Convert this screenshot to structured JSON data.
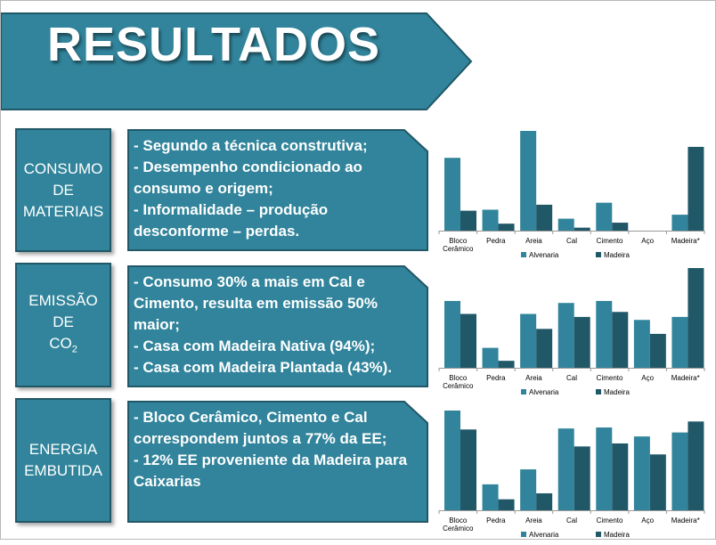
{
  "title": "RESULTADOS",
  "colors": {
    "primary": "#31849b",
    "dark": "#215868",
    "alvenaria": "#31849b",
    "madeira": "#215868"
  },
  "sections": [
    {
      "label_lines": [
        "CONSUMO",
        "DE",
        "MATERIAIS"
      ],
      "text_lines": [
        "- Segundo a técnica construtiva;",
        "- Desempenho condicionado ao",
        "consumo e origem;",
        "- Informalidade – produção",
        "desconforme – perdas."
      ]
    },
    {
      "label_lines": [
        "EMISSÃO",
        "DE",
        "CO"
      ],
      "label_subscript": "2",
      "text_lines": [
        "- Consumo 30% a mais em Cal e",
        "Cimento, resulta em emissão  50%",
        "maior;",
        "- Casa com Madeira Nativa (94%);",
        "- Casa com Madeira Plantada (43%)."
      ]
    },
    {
      "label_lines": [
        "ENERGIA",
        "EMBUTIDA"
      ],
      "text_lines": [
        "- Bloco Cerâmico, Cimento e Cal",
        "correspondem juntos a 77% da EE;",
        "- 12% EE proveniente da Madeira para",
        "Caixarias"
      ]
    }
  ],
  "chart_data": [
    {
      "type": "bar",
      "categories": [
        "Bloco Cerâmico",
        "Pedra",
        "Areia",
        "Cal",
        "Cimento",
        "Aço",
        "Madeira*"
      ],
      "series": [
        {
          "name": "Alvenaria",
          "values": [
            73,
            21,
            100,
            12,
            28,
            0,
            16
          ]
        },
        {
          "name": "Madeira",
          "values": [
            20,
            7,
            26,
            3,
            8,
            0,
            84
          ]
        }
      ],
      "legend": "bottom"
    },
    {
      "type": "bar",
      "categories": [
        "Bloco Cerâmico",
        "Pedra",
        "Areia",
        "Cal",
        "Cimento",
        "Aço",
        "Madeira*"
      ],
      "series": [
        {
          "name": "Alvenaria",
          "values": [
            67,
            20,
            54,
            65,
            67,
            48,
            51
          ]
        },
        {
          "name": "Madeira",
          "values": [
            54,
            7,
            39,
            51,
            56,
            34,
            100
          ]
        }
      ],
      "legend": "bottom"
    },
    {
      "type": "bar",
      "categories": [
        "Bloco Cerâmico",
        "Pedra",
        "Areia",
        "Cal",
        "Cimento",
        "Aço",
        "Madeira*"
      ],
      "series": [
        {
          "name": "Alvenaria",
          "values": [
            100,
            26,
            41,
            82,
            83,
            74,
            78
          ]
        },
        {
          "name": "Madeira",
          "values": [
            81,
            11,
            17,
            64,
            67,
            56,
            89
          ]
        }
      ],
      "legend": "bottom"
    }
  ]
}
